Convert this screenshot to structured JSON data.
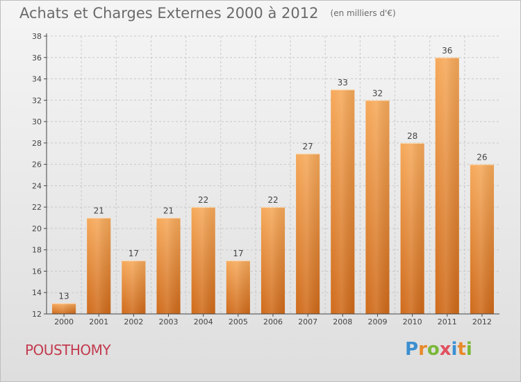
{
  "header": {
    "title": "Achats et Charges Externes 2000 à 2012",
    "subtitle": "(en milliers d'€)"
  },
  "footer": {
    "place": "POUSTHOMY",
    "logo_letters": [
      "P",
      "r",
      "o",
      "x",
      "i",
      "t",
      "i"
    ],
    "logo_colors": [
      "#3b8fd0",
      "#e8892a",
      "#7ab83a",
      "#e05060",
      "#3b8fd0",
      "#e8892a",
      "#7ab83a"
    ]
  },
  "colors": {
    "bar_light": "#f6a95a",
    "bar_dark": "#cf6a1a",
    "grid": "#c8c8c8",
    "axis": "#444444",
    "text": "#444444"
  },
  "chart_data": {
    "type": "bar",
    "categories": [
      "2000",
      "2001",
      "2002",
      "2003",
      "2004",
      "2005",
      "2006",
      "2007",
      "2008",
      "2009",
      "2010",
      "2011",
      "2012"
    ],
    "values": [
      13,
      21,
      17,
      21,
      22,
      17,
      22,
      27,
      33,
      32,
      28,
      36,
      26
    ],
    "yticks": [
      12,
      14,
      16,
      18,
      20,
      22,
      24,
      26,
      28,
      30,
      32,
      34,
      36,
      38
    ],
    "ylim": [
      12,
      38
    ],
    "grid": true
  }
}
